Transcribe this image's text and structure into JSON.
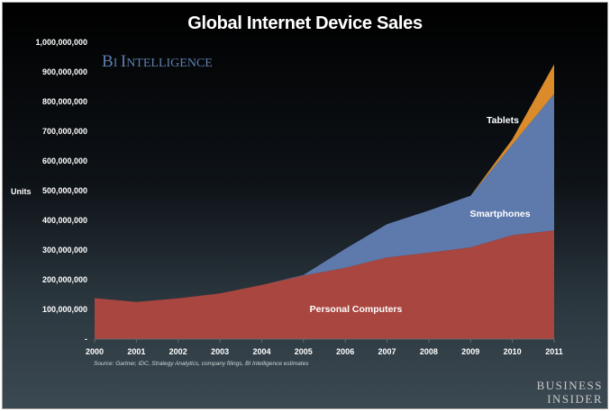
{
  "chart_data": {
    "type": "area",
    "stacked": true,
    "title": "Global Internet Device Sales",
    "ylabel": "Units",
    "xlabel": "",
    "x": [
      2000,
      2001,
      2002,
      2003,
      2004,
      2005,
      2006,
      2007,
      2008,
      2009,
      2010,
      2011
    ],
    "x_tick_labels": [
      "2000",
      "2001",
      "2002",
      "2003",
      "2004",
      "2005",
      "2006",
      "2007",
      "2008",
      "2009",
      "2010",
      "2011"
    ],
    "ylim": [
      0,
      1000000000
    ],
    "y_tick_values": [
      0,
      100000000,
      200000000,
      300000000,
      400000000,
      500000000,
      600000000,
      700000000,
      800000000,
      900000000,
      1000000000
    ],
    "y_tick_labels": [
      "-",
      "100,000,000",
      "200,000,000",
      "300,000,000",
      "400,000,000",
      "500,000,000",
      "600,000,000",
      "700,000,000",
      "800,000,000",
      "900,000,000",
      "1,000,000,000"
    ],
    "series": [
      {
        "name": "Personal Computers",
        "color": "#a9463f",
        "values": [
          138000000,
          125000000,
          137000000,
          154000000,
          182000000,
          214000000,
          240000000,
          275000000,
          291000000,
          309000000,
          350000000,
          366000000
        ]
      },
      {
        "name": "Smartphones",
        "color": "#5e7aac",
        "values": [
          0,
          0,
          0,
          0,
          0,
          2000000,
          64000000,
          112000000,
          142000000,
          174000000,
          305000000,
          460000000
        ]
      },
      {
        "name": "Tablets",
        "color": "#db8b2a",
        "values": [
          0,
          0,
          0,
          0,
          0,
          0,
          0,
          0,
          0,
          0,
          18000000,
          100000000
        ]
      }
    ],
    "annotations": {
      "watermark": "BI INTELLIGENCE",
      "source": "Source: Gartner, IDC, Strategy Analytics, company filings, BI Intelligence estimates"
    }
  },
  "branding": {
    "line1": "BUSINESS",
    "line2": "INSIDER"
  }
}
